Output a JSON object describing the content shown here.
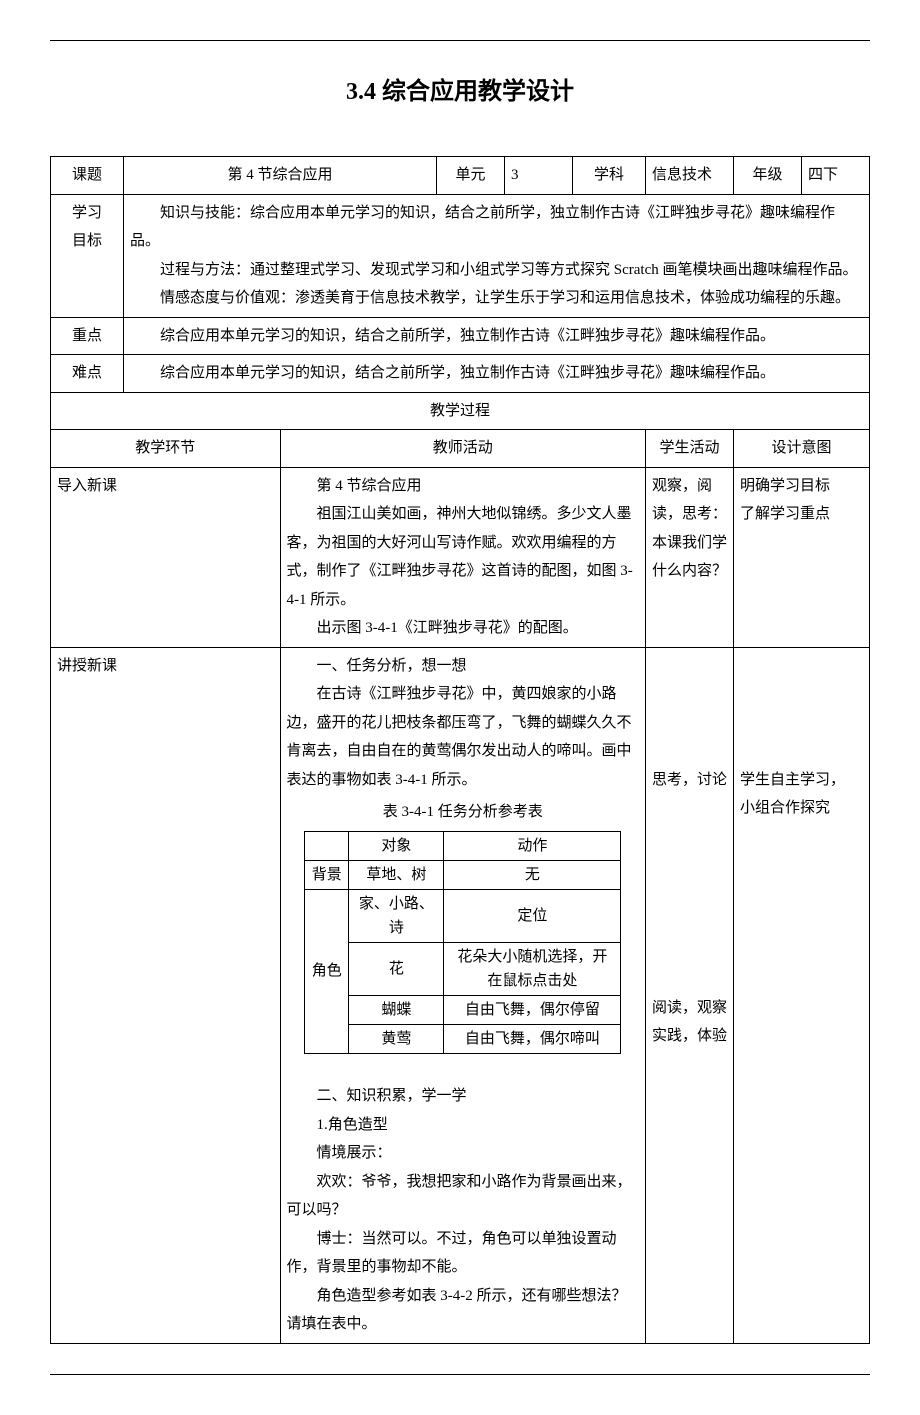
{
  "title": "3.4 综合应用教学设计",
  "header_row": {
    "topic_label": "课题",
    "topic_value": "第 4 节综合应用",
    "unit_label": "单元",
    "unit_value": "3",
    "subject_label": "学科",
    "subject_value": "信息技术",
    "grade_label": "年级",
    "grade_value": "四下"
  },
  "objectives": {
    "label": "学习\n目标",
    "p1": "知识与技能：综合应用本单元学习的知识，结合之前所学，独立制作古诗《江畔独步寻花》趣味编程作品。",
    "p2": "过程与方法：通过整理式学习、发现式学习和小组式学习等方式探究 Scratch 画笔模块画出趣味编程作品。",
    "p3": "情感态度与价值观：渗透美育于信息技术教学，让学生乐于学习和运用信息技术，体验成功编程的乐趣。"
  },
  "keypoint": {
    "label": "重点",
    "text": "综合应用本单元学习的知识，结合之前所学，独立制作古诗《江畔独步寻花》趣味编程作品。"
  },
  "difficulty": {
    "label": "难点",
    "text": "综合应用本单元学习的知识，结合之前所学，独立制作古诗《江畔独步寻花》趣味编程作品。"
  },
  "process_header": "教学过程",
  "columns": {
    "env": "教学环节",
    "teacher": "教师活动",
    "student": "学生活动",
    "intent": "设计意图"
  },
  "intro": {
    "env": "导入新课",
    "teacher_title": "第 4 节综合应用",
    "teacher_body": "祖国江山美如画，神州大地似锦绣。多少文人墨客，为祖国的大好河山写诗作赋。欢欢用编程的方式，制作了《江畔独步寻花》这首诗的配图，如图 3-4-1 所示。",
    "teacher_fig": "出示图 3-4-1《江畔独步寻花》的配图。",
    "student_p1": "观察，阅读，思考：",
    "student_p2": "本课我们学什么内容？",
    "intent_p1": "明确学习目标",
    "intent_p2": "了解学习重点"
  },
  "lecture": {
    "env": "讲授新课",
    "sec1_title": "一、任务分析，想一想",
    "sec1_body": "在古诗《江畔独步寻花》中，黄四娘家的小路边，盛开的花儿把枝条都压弯了，飞舞的蝴蝶久久不肯离去，自由自在的黄莺偶尔发出动人的啼叫。画中表达的事物如表 3-4-1 所示。",
    "table_caption": "表 3-4-1 任务分析参考表",
    "table_header": {
      "c2": "对象",
      "c3": "动作"
    },
    "table_rows": [
      {
        "cat": "背景",
        "obj": "草地、树",
        "act": "无"
      },
      {
        "cat": "角色",
        "obj": "家、小路、诗",
        "act": "定位"
      },
      {
        "cat": "",
        "obj": "花",
        "act": "花朵大小随机选择，开在鼠标点击处"
      },
      {
        "cat": "",
        "obj": "蝴蝶",
        "act": "自由飞舞，偶尔停留"
      },
      {
        "cat": "",
        "obj": "黄莺",
        "act": "自由飞舞，偶尔啼叫"
      }
    ],
    "sec2_title": "二、知识积累，学一学",
    "sec2_sub": "1.角色造型",
    "sec2_context": "情境展示：",
    "sec2_line1": "欢欢：爷爷，我想把家和小路作为背景画出来，可以吗？",
    "sec2_line2": "博士：当然可以。不过，角色可以单独设置动作，背景里的事物却不能。",
    "sec2_line3": "角色造型参考如表 3-4-2 所示，还有哪些想法？请填在表中。",
    "student_block1": "思考，讨论",
    "student_block2_l1": "阅读，观察",
    "student_block2_l2": "实践，体验",
    "intent_l1": "学生自主学习，",
    "intent_l2": "小组合作探究"
  }
}
